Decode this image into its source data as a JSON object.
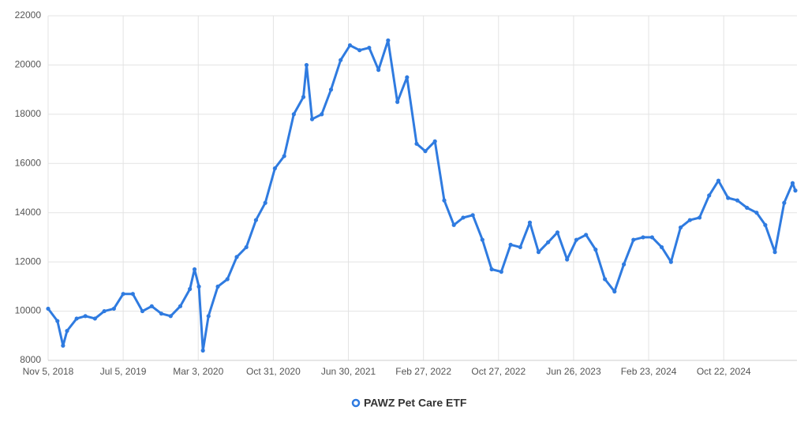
{
  "chart_data": {
    "type": "line",
    "x": [
      "2018-11-05",
      "2018-12-05",
      "2018-12-23",
      "2019-01-05",
      "2019-02-05",
      "2019-03-05",
      "2019-04-05",
      "2019-05-05",
      "2019-06-05",
      "2019-07-05",
      "2019-08-05",
      "2019-09-05",
      "2019-10-05",
      "2019-11-05",
      "2019-12-05",
      "2020-01-05",
      "2020-02-05",
      "2020-02-20",
      "2020-03-05",
      "2020-03-18",
      "2020-04-05",
      "2020-05-05",
      "2020-06-05",
      "2020-07-05",
      "2020-08-05",
      "2020-09-05",
      "2020-10-05",
      "2020-11-05",
      "2020-12-05",
      "2021-01-05",
      "2021-02-05",
      "2021-02-15",
      "2021-03-05",
      "2021-04-05",
      "2021-05-05",
      "2021-06-05",
      "2021-07-05",
      "2021-08-05",
      "2021-09-05",
      "2021-10-05",
      "2021-11-05",
      "2021-12-05",
      "2022-01-05",
      "2022-02-05",
      "2022-03-05",
      "2022-04-05",
      "2022-05-05",
      "2022-06-05",
      "2022-07-05",
      "2022-08-05",
      "2022-09-05",
      "2022-10-05",
      "2022-11-05",
      "2022-12-05",
      "2023-01-05",
      "2023-02-05",
      "2023-03-05",
      "2023-04-05",
      "2023-05-05",
      "2023-06-05",
      "2023-07-05",
      "2023-08-05",
      "2023-09-05",
      "2023-10-05",
      "2023-11-05",
      "2023-12-05",
      "2024-01-05",
      "2024-02-05",
      "2024-03-05",
      "2024-04-05",
      "2024-05-05",
      "2024-06-05",
      "2024-07-05",
      "2024-08-05",
      "2024-09-05",
      "2024-10-05",
      "2024-11-05",
      "2024-12-05",
      "2025-01-05",
      "2025-02-05",
      "2025-03-05",
      "2025-04-05",
      "2025-05-05",
      "2025-06-01",
      "2025-06-10"
    ],
    "series": [
      {
        "name": "PAWZ Pet Care ETF",
        "color": "#2f7be0",
        "values": [
          10100,
          9600,
          8600,
          9200,
          9700,
          9800,
          9700,
          10000,
          10100,
          10700,
          10700,
          10000,
          10200,
          9900,
          9800,
          10200,
          10900,
          11700,
          11000,
          8400,
          9800,
          11000,
          11300,
          12200,
          12600,
          13700,
          14400,
          15800,
          16300,
          18000,
          18700,
          20000,
          17800,
          18000,
          19000,
          20200,
          20800,
          20600,
          20700,
          19800,
          21000,
          18500,
          19500,
          16800,
          16500,
          16900,
          14500,
          13500,
          13800,
          13900,
          12900,
          11700,
          11600,
          12700,
          12600,
          13600,
          12400,
          12800,
          13200,
          12100,
          12900,
          13100,
          12500,
          11300,
          10800,
          11900,
          12900,
          13000,
          13000,
          12600,
          12000,
          13400,
          13700,
          13800,
          14700,
          15300,
          14600,
          14500,
          14200,
          14000,
          13500,
          12400,
          14400,
          15200,
          14900
        ]
      }
    ],
    "xlim": [
      "2018-11-05",
      "2025-06-10"
    ],
    "xticks": [
      {
        "value": "2018-11-05",
        "label": "Nov 5, 2018"
      },
      {
        "value": "2019-07-05",
        "label": "Jul 5, 2019"
      },
      {
        "value": "2020-03-03",
        "label": "Mar 3, 2020"
      },
      {
        "value": "2020-10-31",
        "label": "Oct 31, 2020"
      },
      {
        "value": "2021-06-30",
        "label": "Jun 30, 2021"
      },
      {
        "value": "2022-02-27",
        "label": "Feb 27, 2022"
      },
      {
        "value": "2022-10-27",
        "label": "Oct 27, 2022"
      },
      {
        "value": "2023-06-26",
        "label": "Jun 26, 2023"
      },
      {
        "value": "2024-02-23",
        "label": "Feb 23, 2024"
      },
      {
        "value": "2024-10-22",
        "label": "Oct 22, 2024"
      }
    ],
    "ylim": [
      8000,
      22000
    ],
    "yticks": [
      8000,
      10000,
      12000,
      14000,
      16000,
      18000,
      20000,
      22000
    ],
    "grid": true
  }
}
